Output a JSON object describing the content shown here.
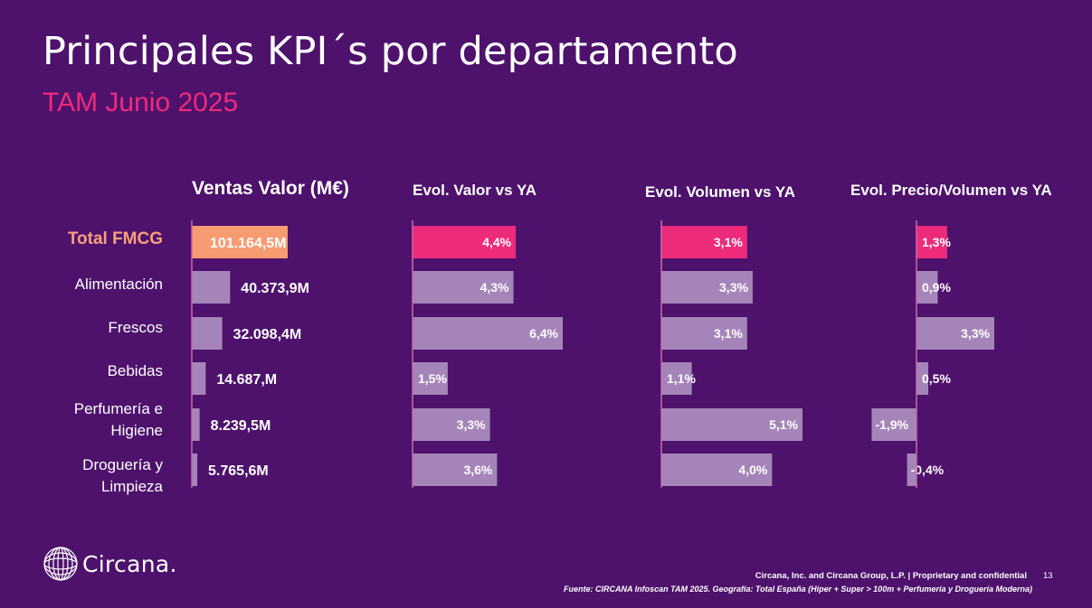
{
  "page": {
    "title": "Principales KPI´s por departamento",
    "subtitle": "TAM Junio 2025"
  },
  "colors": {
    "background": "#4e126c",
    "highlight_pink": "#ee2a7b",
    "highlight_orange": "#f79b71",
    "bar_default": "#a585b9",
    "axis": "#c86aa8"
  },
  "chart_data": [
    {
      "type": "bar",
      "orientation": "horizontal",
      "title": "Ventas Valor (M€)",
      "categories": [
        "Total FMCG",
        "Alimentación",
        "Frescos",
        "Bebidas",
        "Perfumería e Higiene",
        "Droguería y Limpieza"
      ],
      "values": [
        101164.5,
        40373.9,
        32098.4,
        14687.0,
        8239.5,
        5765.6
      ],
      "labels": [
        "101.164,5M",
        "40.373,9M",
        "32.098,4M",
        "14.687,M",
        "8.239,5M",
        "5.765,6M"
      ],
      "highlight_index": 0
    },
    {
      "type": "bar",
      "orientation": "horizontal",
      "title": "Evol. Valor vs YA",
      "categories": [
        "Total FMCG",
        "Alimentación",
        "Frescos",
        "Bebidas",
        "Perfumería e Higiene",
        "Droguería y Limpieza"
      ],
      "values": [
        4.4,
        4.3,
        6.4,
        1.5,
        3.3,
        3.6
      ],
      "labels": [
        "4,4%",
        "4,3%",
        "6,4%",
        "1,5%",
        "3,3%",
        "3,6%"
      ],
      "highlight_index": 0
    },
    {
      "type": "bar",
      "orientation": "horizontal",
      "title": "Evol. Volumen vs YA",
      "categories": [
        "Total FMCG",
        "Alimentación",
        "Frescos",
        "Bebidas",
        "Perfumería e Higiene",
        "Droguería y Limpieza"
      ],
      "values": [
        3.1,
        3.3,
        3.1,
        1.1,
        5.1,
        4.0
      ],
      "labels": [
        "3,1%",
        "3,3%",
        "3,1%",
        "1,1%",
        "5,1%",
        "4,0%"
      ],
      "highlight_index": 0
    },
    {
      "type": "bar",
      "orientation": "horizontal",
      "title": "Evol. Precio/Volumen vs YA",
      "categories": [
        "Total FMCG",
        "Alimentación",
        "Frescos",
        "Bebidas",
        "Perfumería e Higiene",
        "Droguería y Limpieza"
      ],
      "values": [
        1.3,
        0.9,
        3.3,
        0.5,
        -1.9,
        -0.4
      ],
      "labels": [
        "1,3%",
        "0,9%",
        "3,3%",
        "0,5%",
        "-1,9%",
        "-0,4%"
      ],
      "highlight_index": 0
    }
  ],
  "rows": [
    {
      "label": "Total FMCG"
    },
    {
      "label": "Alimentación"
    },
    {
      "label": "Frescos"
    },
    {
      "label": "Bebidas"
    },
    {
      "label": "Perfumería e\nHigiene"
    },
    {
      "label": "Droguería y\nLimpieza"
    }
  ],
  "footer": {
    "logo_text": "Circana.",
    "company": "Circana, Inc. and Circana Group, L.P. |  Proprietary and confidential",
    "page_number": "13",
    "source": "Fuente: CIRCANA Infoscan TAM 2025. Geografía: Total España (Hiper + Super > 100m + Perfumería y Droguería Moderna)"
  }
}
